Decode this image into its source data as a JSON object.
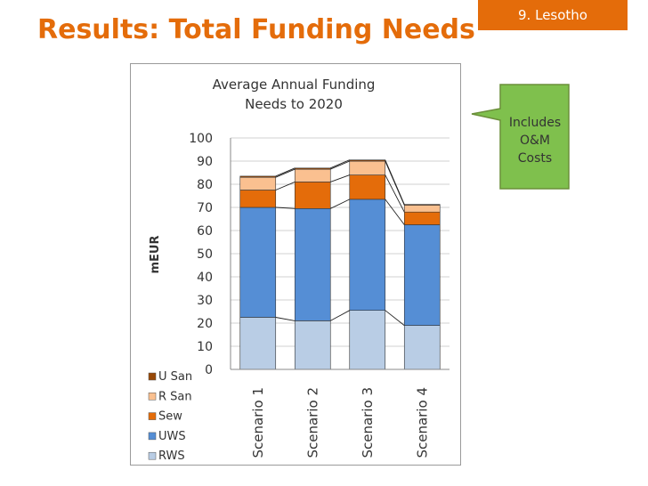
{
  "slide": {
    "title": "Results: Total Funding Needs",
    "section_tag": "9. Lesotho",
    "callout_text": "Includes O&M Costs",
    "colors": {
      "title": "#e46c0a",
      "tag_bg": "#e46c0a",
      "callout_bg": "#7fc04d",
      "callout_border": "#6b8f3a"
    }
  },
  "chart_data": {
    "type": "bar",
    "stacked": true,
    "title": "Average Annual Funding Needs to 2020",
    "title_lines": [
      "Average Annual Funding",
      "Needs to 2020"
    ],
    "ylabel": "mEUR",
    "xlabel": "",
    "ylim": [
      0,
      100
    ],
    "yticks": [
      0,
      10,
      20,
      30,
      40,
      50,
      60,
      70,
      80,
      90,
      100
    ],
    "grid": true,
    "legend_position": "bottom-left",
    "categories": [
      "Scenario 1",
      "Scenario 2",
      "Scenario 3",
      "Scenario 4"
    ],
    "series": [
      {
        "name": "RWS",
        "color": "#b9cde5",
        "values": [
          22.5,
          21,
          25.5,
          19
        ]
      },
      {
        "name": "UWS",
        "color": "#558ed5",
        "values": [
          47.5,
          48.5,
          48,
          43.5
        ]
      },
      {
        "name": "Sew",
        "color": "#e46c0a",
        "values": [
          7.5,
          11.5,
          10.5,
          5.5
        ]
      },
      {
        "name": "R San",
        "color": "#fac090",
        "values": [
          5.5,
          5.5,
          6,
          3
        ]
      },
      {
        "name": "U San",
        "color": "#984807",
        "values": [
          0.5,
          0.5,
          0.5,
          0.3
        ]
      }
    ],
    "legend_order": [
      "U San",
      "R San",
      "Sew",
      "UWS",
      "RWS"
    ]
  }
}
